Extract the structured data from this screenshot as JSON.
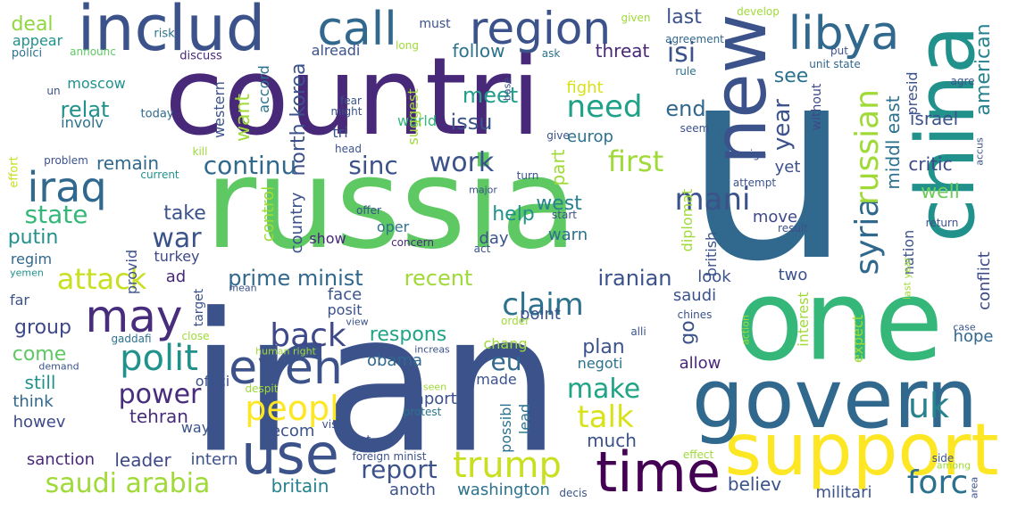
{
  "words": [
    {
      "text": "u",
      "color": "#31688e"
    },
    {
      "text": "iran",
      "color": "#3b528b"
    },
    {
      "text": "russia",
      "color": "#5ec962"
    },
    {
      "text": "countri",
      "color": "#482878"
    },
    {
      "text": "one",
      "color": "#35b779"
    },
    {
      "text": "govern",
      "color": "#31688e"
    },
    {
      "text": "china",
      "color": "#21918c"
    },
    {
      "text": "new",
      "color": "#3b528b"
    },
    {
      "text": "support",
      "color": "#fde725"
    },
    {
      "text": "includ",
      "color": "#3b528b"
    },
    {
      "text": "time",
      "color": "#440154"
    },
    {
      "text": "use",
      "color": "#3b528b"
    },
    {
      "text": "region",
      "color": "#3b528b"
    },
    {
      "text": "call",
      "color": "#31688e"
    },
    {
      "text": "libya",
      "color": "#31688e"
    },
    {
      "text": "may",
      "color": "#472d7b"
    },
    {
      "text": "even",
      "color": "#3b528b"
    },
    {
      "text": "iraq",
      "color": "#31688e"
    },
    {
      "text": "trump",
      "color": "#c8e020"
    },
    {
      "text": "syria",
      "color": "#31688e"
    },
    {
      "text": "russian",
      "color": "#a0da39"
    },
    {
      "text": "polit",
      "color": "#21918c"
    },
    {
      "text": "back",
      "color": "#3e4989"
    },
    {
      "text": "saudi arabia",
      "color": "#a0da39"
    },
    {
      "text": "attack",
      "color": "#c8e020"
    },
    {
      "text": "peopl",
      "color": "#fde725"
    },
    {
      "text": "claim",
      "color": "#2c728e"
    },
    {
      "text": "forc",
      "color": "#2c728e"
    },
    {
      "text": "talk",
      "color": "#d8e219"
    },
    {
      "text": "make",
      "color": "#20a486"
    },
    {
      "text": "uk",
      "color": "#26828e"
    },
    {
      "text": "continu",
      "color": "#31688e"
    },
    {
      "text": "sinc",
      "color": "#3b528b"
    },
    {
      "text": "work",
      "color": "#3b528b"
    },
    {
      "text": "need",
      "color": "#1fa187"
    },
    {
      "text": "first",
      "color": "#a0da39"
    },
    {
      "text": "mani",
      "color": "#3b528b"
    },
    {
      "text": "state",
      "color": "#35b779"
    },
    {
      "text": "war",
      "color": "#3b528b"
    },
    {
      "text": "power",
      "color": "#472d7b"
    },
    {
      "text": "report",
      "color": "#3b528b"
    },
    {
      "text": "eu",
      "color": "#31688e"
    },
    {
      "text": "isi",
      "color": "#3b528b"
    },
    {
      "text": "year",
      "color": "#3b528b"
    },
    {
      "text": "respons",
      "color": "#20a486"
    },
    {
      "text": "prime minist",
      "color": "#31688e"
    },
    {
      "text": "recent",
      "color": "#a0da39"
    },
    {
      "text": "iranian",
      "color": "#3b528b"
    },
    {
      "text": "issu",
      "color": "#3b528b"
    },
    {
      "text": "meet",
      "color": "#1f9e89"
    },
    {
      "text": "relat",
      "color": "#21918c"
    },
    {
      "text": "deal",
      "color": "#90d743"
    },
    {
      "text": "last",
      "color": "#3b528b"
    },
    {
      "text": "follow",
      "color": "#2c728e"
    },
    {
      "text": "threat",
      "color": "#482878"
    },
    {
      "text": "see",
      "color": "#2c728e"
    },
    {
      "text": "end",
      "color": "#31688e"
    },
    {
      "text": "want",
      "color": "#a0da39"
    },
    {
      "text": "north korea",
      "color": "#3b528b"
    },
    {
      "text": "middl east",
      "color": "#2c728e"
    },
    {
      "text": "american",
      "color": "#26828e"
    },
    {
      "text": "israel",
      "color": "#3b528b"
    },
    {
      "text": "critic",
      "color": "#3e4989"
    },
    {
      "text": "well",
      "color": "#6ccd5a"
    },
    {
      "text": "take",
      "color": "#3b528b"
    },
    {
      "text": "putin",
      "color": "#21918c"
    },
    {
      "text": "help",
      "color": "#21918c"
    },
    {
      "text": "west",
      "color": "#26828e"
    },
    {
      "text": "part",
      "color": "#a0da39"
    },
    {
      "text": "remain",
      "color": "#31688e"
    },
    {
      "text": "group",
      "color": "#3e4989"
    },
    {
      "text": "come",
      "color": "#5ec962"
    },
    {
      "text": "still",
      "color": "#21918c"
    },
    {
      "text": "think",
      "color": "#31688e"
    },
    {
      "text": "howev",
      "color": "#3e4989"
    },
    {
      "text": "tehran",
      "color": "#472d7b"
    },
    {
      "text": "leader",
      "color": "#3e4989"
    },
    {
      "text": "britain",
      "color": "#26828e"
    },
    {
      "text": "anoth",
      "color": "#3b528b"
    },
    {
      "text": "washington",
      "color": "#2c728e"
    },
    {
      "text": "much",
      "color": "#3b528b"
    },
    {
      "text": "plan",
      "color": "#3b528b"
    },
    {
      "text": "believ",
      "color": "#3b528b"
    },
    {
      "text": "militari",
      "color": "#3b528b"
    },
    {
      "text": "hope",
      "color": "#31688e"
    },
    {
      "text": "go",
      "color": "#3b528b"
    },
    {
      "text": "allow",
      "color": "#482878"
    },
    {
      "text": "sanction",
      "color": "#482878"
    },
    {
      "text": "intern",
      "color": "#3b528b"
    },
    {
      "text": "becom",
      "color": "#3b528b"
    },
    {
      "text": "import",
      "color": "#3b528b"
    },
    {
      "text": "made",
      "color": "#3b528b"
    },
    {
      "text": "lead",
      "color": "#2c728e"
    },
    {
      "text": "possibl",
      "color": "#2c728e"
    },
    {
      "text": "world",
      "color": "#35b779"
    },
    {
      "text": "europ",
      "color": "#2c728e"
    },
    {
      "text": "fight",
      "color": "#d8e219"
    },
    {
      "text": "turkey",
      "color": "#3e4989"
    },
    {
      "text": "regim",
      "color": "#31688e"
    },
    {
      "text": "show",
      "color": "#482878"
    },
    {
      "text": "country",
      "color": "#3b528b"
    },
    {
      "text": "control",
      "color": "#a0da39"
    },
    {
      "text": "provid",
      "color": "#3b528b"
    },
    {
      "text": "ad",
      "color": "#482878"
    },
    {
      "text": "face",
      "color": "#3b528b"
    },
    {
      "text": "posit",
      "color": "#3b528b"
    },
    {
      "text": "obama",
      "color": "#31688e"
    },
    {
      "text": "offici",
      "color": "#3b528b"
    },
    {
      "text": "way",
      "color": "#3b528b"
    },
    {
      "text": "point",
      "color": "#3b528b"
    },
    {
      "text": "chang",
      "color": "#a0da39"
    },
    {
      "text": "negoti",
      "color": "#2c728e"
    },
    {
      "text": "saudi",
      "color": "#3b528b"
    },
    {
      "text": "look",
      "color": "#3b528b"
    },
    {
      "text": "two",
      "color": "#3b528b"
    },
    {
      "text": "interest",
      "color": "#a0da39"
    },
    {
      "text": "expect",
      "color": "#a0da39"
    },
    {
      "text": "conflict",
      "color": "#3e4989"
    },
    {
      "text": "yet",
      "color": "#3b528b"
    },
    {
      "text": "presid",
      "color": "#3b528b"
    },
    {
      "text": "nation",
      "color": "#3b528b"
    },
    {
      "text": "british",
      "color": "#3b528b"
    },
    {
      "text": "diplomat",
      "color": "#a0da39"
    },
    {
      "text": "move",
      "color": "#3e4989"
    },
    {
      "text": "day",
      "color": "#3b528b"
    },
    {
      "text": "warn",
      "color": "#2c728e"
    },
    {
      "text": "oper",
      "color": "#2c728e"
    },
    {
      "text": "suggest",
      "color": "#a0da39"
    },
    {
      "text": "tri",
      "color": "#3b528b"
    },
    {
      "text": "moscow",
      "color": "#21918c"
    },
    {
      "text": "appear",
      "color": "#21918c"
    },
    {
      "text": "alreadi",
      "color": "#3b528b"
    },
    {
      "text": "accord",
      "color": "#2c728e"
    },
    {
      "text": "western",
      "color": "#3b528b"
    },
    {
      "text": "involv",
      "color": "#2c728e"
    },
    {
      "text": "without",
      "color": "#3e4989"
    },
    {
      "text": "must",
      "color": "#3b528b"
    },
    {
      "text": "risk",
      "color": "#2c728e"
    },
    {
      "text": "polici",
      "color": "#2c728e"
    },
    {
      "text": "announc",
      "color": "#5ec962"
    },
    {
      "text": "discuss",
      "color": "#482878"
    },
    {
      "text": "long",
      "color": "#a0da39"
    },
    {
      "text": "ask",
      "color": "#2c728e"
    },
    {
      "text": "develop",
      "color": "#a0da39"
    },
    {
      "text": "given",
      "color": "#a0da39"
    },
    {
      "text": "agreement",
      "color": "#31688e"
    },
    {
      "text": "put",
      "color": "#3b528b"
    },
    {
      "text": "unit state",
      "color": "#31688e"
    },
    {
      "text": "rule",
      "color": "#2c728e"
    },
    {
      "text": "agre",
      "color": "#3b528b"
    },
    {
      "text": "un",
      "color": "#3b528b"
    },
    {
      "text": "today",
      "color": "#31688e"
    },
    {
      "text": "might",
      "color": "#3b528b"
    },
    {
      "text": "fear",
      "color": "#3b528b"
    },
    {
      "text": "base",
      "color": "#3b528b"
    },
    {
      "text": "give",
      "color": "#3b528b"
    },
    {
      "text": "seem",
      "color": "#3b528b"
    },
    {
      "text": "head",
      "color": "#3b528b"
    },
    {
      "text": "kill",
      "color": "#a0da39"
    },
    {
      "text": "problem",
      "color": "#3b528b"
    },
    {
      "text": "effort",
      "color": "#c8e020"
    },
    {
      "text": "current",
      "color": "#21918c"
    },
    {
      "text": "major",
      "color": "#3b528b"
    },
    {
      "text": "turn",
      "color": "#3b528b"
    },
    {
      "text": "offer",
      "color": "#3b528b"
    },
    {
      "text": "start",
      "color": "#3b528b"
    },
    {
      "text": "sign",
      "color": "#3b528b"
    },
    {
      "text": "accus",
      "color": "#3b528b"
    },
    {
      "text": "attempt",
      "color": "#3b528b"
    },
    {
      "text": "return",
      "color": "#3b528b"
    },
    {
      "text": "result",
      "color": "#3b528b"
    },
    {
      "text": "concern",
      "color": "#482878"
    },
    {
      "text": "act",
      "color": "#3b528b"
    },
    {
      "text": "yemen",
      "color": "#21918c"
    },
    {
      "text": "mean",
      "color": "#3b528b"
    },
    {
      "text": "target",
      "color": "#3b528b"
    },
    {
      "text": "gaddafi",
      "color": "#2c728e"
    },
    {
      "text": "close",
      "color": "#a0da39"
    },
    {
      "text": "chines",
      "color": "#3b528b"
    },
    {
      "text": "alli",
      "color": "#3b528b"
    },
    {
      "text": "order",
      "color": "#a0da39"
    },
    {
      "text": "action",
      "color": "#a0da39"
    },
    {
      "text": "view",
      "color": "#3b528b"
    },
    {
      "text": "human right",
      "color": "#a0da39"
    },
    {
      "text": "increas",
      "color": "#3b528b"
    },
    {
      "text": "last year",
      "color": "#a0da39"
    },
    {
      "text": "case",
      "color": "#3b528b"
    },
    {
      "text": "demand",
      "color": "#3b528b"
    },
    {
      "text": "despit",
      "color": "#a0da39"
    },
    {
      "text": "seen",
      "color": "#a0da39"
    },
    {
      "text": "protest",
      "color": "#2c728e"
    },
    {
      "text": "visit",
      "color": "#3b528b"
    },
    {
      "text": "far",
      "color": "#3b528b"
    },
    {
      "text": "set",
      "color": "#3b528b"
    },
    {
      "text": "foreign minist",
      "color": "#3b528b"
    },
    {
      "text": "effect",
      "color": "#a0da39"
    },
    {
      "text": "side",
      "color": "#3b528b"
    },
    {
      "text": "among",
      "color": "#a0da39"
    },
    {
      "text": "decis",
      "color": "#3b528b"
    },
    {
      "text": "area",
      "color": "#3b528b"
    }
  ]
}
